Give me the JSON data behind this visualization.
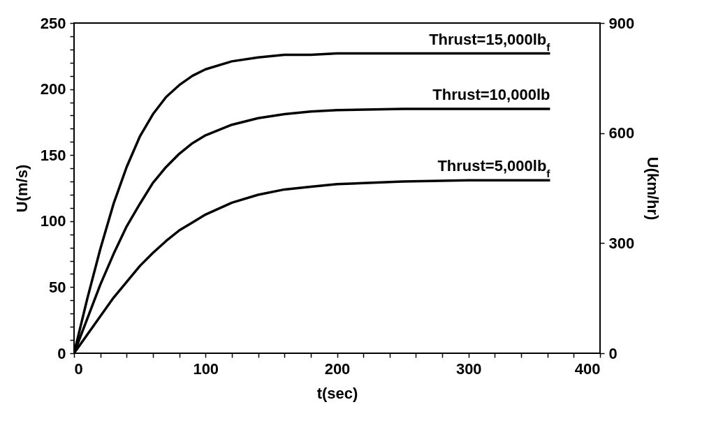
{
  "chart_data": {
    "type": "line",
    "xlabel": "t(sec)",
    "ylabel": "U(m/s)",
    "y2label": "U(km/hr)",
    "x": [
      0,
      10,
      20,
      30,
      40,
      50,
      60,
      70,
      80,
      90,
      100,
      120,
      140,
      160,
      180,
      200,
      250,
      300,
      362
    ],
    "series": [
      {
        "name": "Thrust=15,000lb$_{f}$",
        "color": "#000000",
        "values": [
          0,
          41,
          79,
          113,
          141,
          164,
          181,
          194,
          203,
          210,
          215,
          221,
          224,
          226,
          226,
          227,
          227,
          227,
          227
        ]
      },
      {
        "name": "Thrust=10,000lb",
        "color": "#000000",
        "values": [
          0,
          26,
          52,
          75,
          96,
          113,
          129,
          141,
          151,
          159,
          165,
          173,
          178,
          181,
          183,
          184,
          185,
          185,
          185
        ]
      },
      {
        "name": "Thrust=5,000lb$_{f}$",
        "color": "#000000",
        "values": [
          0,
          14,
          28,
          42,
          54,
          66,
          76,
          85,
          93,
          99,
          105,
          114,
          120,
          124,
          126,
          128,
          130,
          131,
          131
        ]
      }
    ],
    "xlim": [
      0,
      400
    ],
    "xticks": [
      0,
      {
        "value": 20,
        "label": null
      },
      {
        "value": 40,
        "label": null
      },
      {
        "value": 60,
        "label": null
      },
      {
        "value": 80,
        "label": null
      },
      100,
      {
        "value": 120,
        "label": null
      },
      {
        "value": 140,
        "label": null
      },
      {
        "value": 160,
        "label": null
      },
      {
        "value": 180,
        "label": null
      },
      200,
      {
        "value": 220,
        "label": null
      },
      {
        "value": 240,
        "label": null
      },
      {
        "value": 260,
        "label": null
      },
      {
        "value": 280,
        "label": null
      },
      300,
      {
        "value": 320,
        "label": null
      },
      {
        "value": 340,
        "label": null
      },
      {
        "value": 360,
        "label": null
      },
      {
        "value": 380,
        "label": null
      },
      400
    ],
    "ylim": [
      0,
      250
    ],
    "yticks": [
      0,
      {
        "value": 10,
        "label": null
      },
      {
        "value": 20,
        "label": null
      },
      {
        "value": 30,
        "label": null
      },
      {
        "value": 40,
        "label": null
      },
      50,
      {
        "value": 60,
        "label": null
      },
      {
        "value": 70,
        "label": null
      },
      {
        "value": 80,
        "label": null
      },
      {
        "value": 90,
        "label": null
      },
      100,
      {
        "value": 110,
        "label": null
      },
      {
        "value": 120,
        "label": null
      },
      {
        "value": 130,
        "label": null
      },
      {
        "value": 140,
        "label": null
      },
      150,
      {
        "value": 160,
        "label": null
      },
      {
        "value": 170,
        "label": null
      },
      {
        "value": 180,
        "label": null
      },
      {
        "value": 190,
        "label": null
      },
      200,
      {
        "value": 210,
        "label": null
      },
      {
        "value": 220,
        "label": null
      },
      {
        "value": 230,
        "label": null
      },
      {
        "value": 240,
        "label": null
      },
      250
    ],
    "y2lim": [
      0,
      900
    ],
    "y2ticks": [
      0,
      300,
      600,
      900
    ],
    "grid": false,
    "legend": false,
    "line_style": "solid",
    "marker": "none"
  }
}
